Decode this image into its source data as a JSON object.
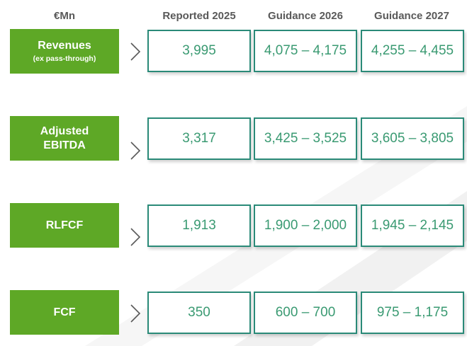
{
  "header": {
    "unit": "€Mn",
    "columns": [
      "Reported 2025",
      "Guidance 2026",
      "Guidance 2027"
    ]
  },
  "rows": [
    {
      "label": "Revenues",
      "sublabel": "(ex pass-through)",
      "values": [
        "3,995",
        "4,075 – 4,175",
        "4,255 – 4,455"
      ]
    },
    {
      "label": "Adjusted EBITDA",
      "sublabel": "",
      "values": [
        "3,317",
        "3,425 – 3,525",
        "3,605 – 3,805"
      ]
    },
    {
      "label": "RLFCF",
      "sublabel": "",
      "values": [
        "1,913",
        "1,900 – 2,000",
        "1,945 – 2,145"
      ]
    },
    {
      "label": "FCF",
      "sublabel": "",
      "values": [
        "350",
        "600 – 700",
        "975 – 1,175"
      ]
    }
  ],
  "colors": {
    "label_green": "#5ea826",
    "box_border": "#2a8a78",
    "value_text": "#3a9a72",
    "header_text": "#595959"
  }
}
